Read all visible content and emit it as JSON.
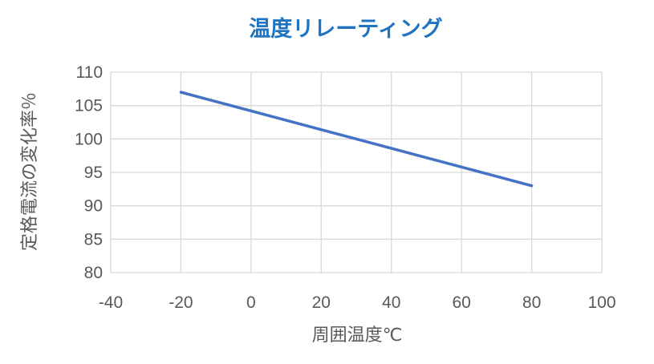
{
  "chart_data": {
    "type": "line",
    "title": "温度リレーティング",
    "xlabel": "周囲温度℃",
    "ylabel": "定格電流の変化率％",
    "xlim": [
      -40,
      100
    ],
    "ylim": [
      80,
      110
    ],
    "x_ticks": [
      -40,
      -20,
      0,
      20,
      40,
      60,
      80,
      100
    ],
    "y_ticks": [
      80,
      85,
      90,
      95,
      100,
      105,
      110
    ],
    "grid": true,
    "series": [
      {
        "x": [
          -20,
          80
        ],
        "values": [
          107,
          93
        ]
      }
    ],
    "colors": {
      "line": "#4472c4",
      "title": "#1f73c0",
      "grid": "#d9d9d9",
      "text": "#595959"
    }
  }
}
